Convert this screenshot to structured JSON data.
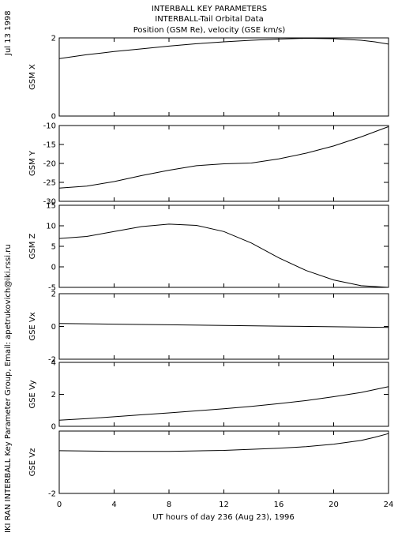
{
  "header": {
    "line1": "INTERBALL KEY PARAMETERS",
    "line2": "INTERBALL-Tail Orbital Data",
    "line3": "Position (GSM Re), velocity (GSE km/s)"
  },
  "side": {
    "date": "Jul 13 1998",
    "credit": "IKI RAN INTERBALL Key Parameter Group, Email: apetrukovich@iki.rssi.ru"
  },
  "xaxis": {
    "label": "UT hours of day 236 (Aug 23), 1996",
    "range": [
      0,
      24
    ],
    "ticks": [
      0,
      4,
      8,
      12,
      16,
      20,
      24
    ]
  },
  "chart_data": [
    {
      "type": "line",
      "ylabel": "GSM X",
      "ylim": [
        0,
        2
      ],
      "yticks": [
        0,
        2
      ],
      "x": [
        0,
        2,
        4,
        6,
        8,
        10,
        12,
        14,
        16,
        18,
        20,
        22,
        23,
        24
      ],
      "y": [
        1.47,
        1.57,
        1.65,
        1.72,
        1.79,
        1.85,
        1.9,
        1.94,
        1.97,
        1.99,
        1.98,
        1.94,
        1.9,
        1.84
      ]
    },
    {
      "type": "line",
      "ylabel": "GSM Y",
      "ylim": [
        -30,
        -10
      ],
      "yticks": [
        -30,
        -25,
        -20,
        -15,
        -10
      ],
      "x": [
        0,
        2,
        4,
        6,
        8,
        10,
        12,
        14,
        16,
        18,
        20,
        22,
        24
      ],
      "y": [
        -26.5,
        -26.0,
        -24.8,
        -23.2,
        -21.8,
        -20.6,
        -20.1,
        -19.9,
        -18.8,
        -17.3,
        -15.4,
        -13.0,
        -10.3
      ]
    },
    {
      "type": "line",
      "ylabel": "GSM Z",
      "ylim": [
        -5,
        15
      ],
      "yticks": [
        -5,
        0,
        5,
        10,
        15
      ],
      "x": [
        0,
        2,
        4,
        6,
        8,
        10,
        12,
        14,
        16,
        18,
        20,
        22,
        24
      ],
      "y": [
        6.9,
        7.4,
        8.6,
        9.8,
        10.4,
        10.1,
        8.6,
        5.8,
        2.2,
        -0.9,
        -3.2,
        -4.6,
        -5.0
      ]
    },
    {
      "type": "line",
      "ylabel": "GSE Vx",
      "ylim": [
        -2,
        2
      ],
      "yticks": [
        -2,
        0,
        2
      ],
      "x": [
        0,
        4,
        8,
        12,
        16,
        20,
        24
      ],
      "y": [
        0.18,
        0.14,
        0.1,
        0.06,
        0.02,
        -0.02,
        -0.06
      ]
    },
    {
      "type": "line",
      "ylabel": "GSE Vy",
      "ylim": [
        0,
        4
      ],
      "yticks": [
        0,
        2,
        4
      ],
      "x": [
        0,
        2,
        4,
        6,
        8,
        10,
        12,
        14,
        16,
        18,
        20,
        22,
        24
      ],
      "y": [
        0.38,
        0.48,
        0.6,
        0.72,
        0.84,
        0.97,
        1.1,
        1.25,
        1.42,
        1.61,
        1.85,
        2.12,
        2.48
      ]
    },
    {
      "type": "line",
      "ylabel": "GSE Vz",
      "ylim": [
        -2,
        0
      ],
      "yticks": [
        -2
      ],
      "x": [
        0,
        4,
        8,
        12,
        16,
        18,
        20,
        22,
        23,
        24
      ],
      "y": [
        -0.63,
        -0.65,
        -0.65,
        -0.62,
        -0.55,
        -0.5,
        -0.42,
        -0.3,
        -0.2,
        -0.08
      ]
    }
  ]
}
